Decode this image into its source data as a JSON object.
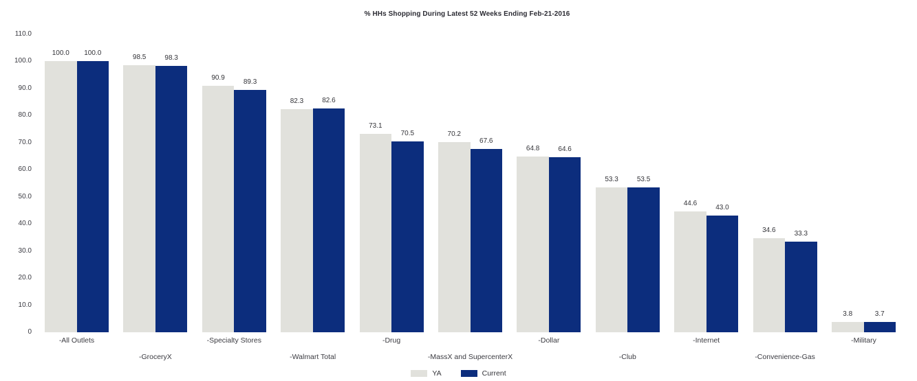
{
  "title": "% HHs Shopping During Latest 52 Weeks Ending Feb-21-2016",
  "colors": {
    "ya": "#e1e1dc",
    "current": "#0c2d7d",
    "text": "#333338"
  },
  "legend": [
    {
      "label": "YA",
      "color_key": "ya"
    },
    {
      "label": "Current",
      "color_key": "current"
    }
  ],
  "chart_data": {
    "type": "bar",
    "title": "% HHs Shopping During Latest 52 Weeks Ending Feb-21-2016",
    "categories": [
      "-All Outlets",
      "-GroceryX",
      "-Specialty Stores",
      "-Walmart Total",
      "-Drug",
      "-MassX and SupercenterX",
      "-Dollar",
      "-Club",
      "-Internet",
      "-Convenience-Gas",
      "-Military"
    ],
    "series": [
      {
        "name": "YA",
        "values": [
          100.0,
          98.5,
          90.9,
          82.3,
          73.1,
          70.2,
          64.8,
          53.3,
          44.6,
          34.6,
          3.8
        ]
      },
      {
        "name": "Current",
        "values": [
          100.0,
          98.3,
          89.3,
          82.6,
          70.5,
          67.6,
          64.6,
          53.5,
          43.0,
          33.3,
          3.7
        ]
      }
    ],
    "value_labels": [
      [
        "100.0",
        "98.5",
        "90.9",
        "82.3",
        "73.1",
        "70.2",
        "64.8",
        "53.3",
        "44.6",
        "34.6",
        "3.8"
      ],
      [
        "100.0",
        "98.3",
        "89.3",
        "82.6",
        "70.5",
        "67.6",
        "64.6",
        "53.5",
        "43.0",
        "33.3",
        "3.7"
      ]
    ],
    "xlabel": "",
    "ylabel": "",
    "ylim": [
      0,
      110
    ],
    "yticks": [
      0,
      10,
      20,
      30,
      40,
      50,
      60,
      70,
      80,
      90,
      100,
      110
    ],
    "ytick_labels": [
      "0",
      "10.0",
      "20.0",
      "30.0",
      "40.0",
      "50.0",
      "60.0",
      "70.0",
      "80.0",
      "90.0",
      "100.0",
      "110.0"
    ],
    "grid": false,
    "data_labels": true,
    "legend_position": "bottom"
  }
}
